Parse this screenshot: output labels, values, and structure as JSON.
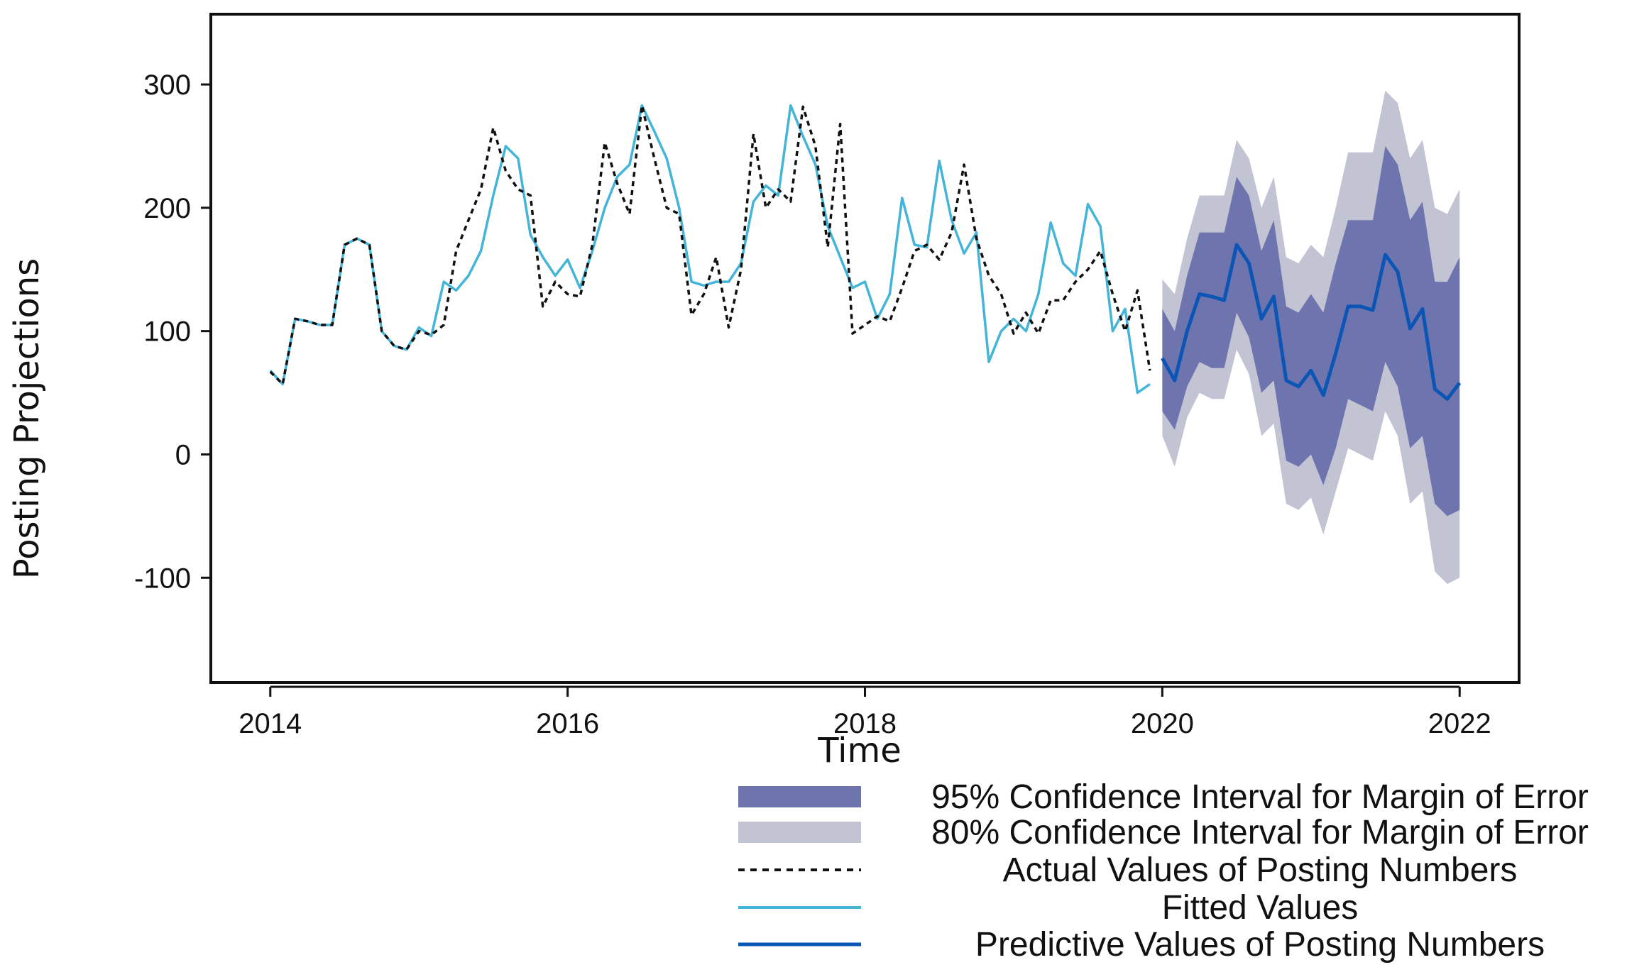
{
  "chart_data": {
    "type": "line",
    "title": "",
    "xlabel": "Time",
    "ylabel": "Posting Projections",
    "xlim": [
      2013.6,
      2022.4
    ],
    "ylim": [
      -185,
      357
    ],
    "x_ticks": [
      2014,
      2016,
      2018,
      2020,
      2022
    ],
    "x_tick_labels": [
      "2014",
      "2016",
      "2018",
      "2020",
      "2022"
    ],
    "y_ticks": [
      300,
      200,
      100,
      0,
      -100
    ],
    "y_tick_labels": [
      "300",
      "200",
      "100",
      "0",
      "-100"
    ],
    "legend_position": "bottom-right",
    "legend": [
      {
        "key": "ci95",
        "label": "95% Confidence Interval for Margin of Error"
      },
      {
        "key": "ci80",
        "label": "80% Confidence Interval for Margin of Error"
      },
      {
        "key": "actual",
        "label": "Actual Values of Posting Numbers"
      },
      {
        "key": "fitted",
        "label": "Fitted Values"
      },
      {
        "key": "predicted",
        "label": "Predictive Values of Posting Numbers"
      }
    ],
    "colors": {
      "ci95": "#6e74ae",
      "ci80": "#c2c3d3",
      "actual": "#111111",
      "fitted": "#44b4d8",
      "predicted": "#0b55b5",
      "axis": "#111111"
    },
    "series": [
      {
        "name": "Actual Values of Posting Numbers",
        "key": "actual",
        "x_start": 2014.0,
        "x_step": 0.08333,
        "values": [
          67,
          57,
          110,
          108,
          105,
          105,
          170,
          175,
          170,
          100,
          88,
          85,
          100,
          97,
          105,
          165,
          190,
          215,
          265,
          230,
          215,
          210,
          120,
          140,
          130,
          128,
          170,
          253,
          220,
          195,
          283,
          240,
          200,
          195,
          113,
          130,
          160,
          103,
          150,
          260,
          200,
          215,
          205,
          282,
          250,
          168,
          268,
          98,
          105,
          112,
          108,
          135,
          165,
          170,
          158,
          180,
          235,
          175,
          145,
          130,
          98,
          115,
          98,
          125,
          125,
          140,
          150,
          165,
          130,
          100,
          133,
          68
        ]
      },
      {
        "name": "Fitted Values",
        "key": "fitted",
        "x_start": 2014.0,
        "x_step": 0.08333,
        "values": [
          68,
          57,
          110,
          108,
          105,
          105,
          170,
          175,
          170,
          100,
          88,
          85,
          103,
          96,
          140,
          133,
          145,
          165,
          210,
          250,
          240,
          178,
          160,
          145,
          158,
          135,
          165,
          200,
          225,
          235,
          283,
          262,
          240,
          200,
          140,
          137,
          140,
          140,
          155,
          205,
          218,
          210,
          283,
          258,
          235,
          185,
          160,
          135,
          140,
          110,
          130,
          208,
          170,
          168,
          238,
          190,
          163,
          180,
          75,
          100,
          110,
          100,
          130,
          188,
          155,
          145,
          203,
          185,
          100,
          118,
          50,
          57
        ]
      },
      {
        "name": "Predictive Values of Posting Numbers",
        "key": "predicted",
        "x_start": 2020.0,
        "x_step": 0.08333,
        "values": [
          78,
          60,
          100,
          130,
          128,
          125,
          170,
          155,
          110,
          128,
          60,
          55,
          68,
          48,
          82,
          120,
          120,
          117,
          162,
          148,
          102,
          118,
          53,
          45,
          58
        ]
      },
      {
        "name": "95% Confidence Interval for Margin of Error",
        "key": "ci95",
        "x_start": 2020.0,
        "x_step": 0.08333,
        "lower": [
          35,
          20,
          55,
          75,
          70,
          70,
          115,
          95,
          50,
          60,
          -5,
          -10,
          0,
          -25,
          5,
          45,
          40,
          35,
          75,
          55,
          5,
          15,
          -40,
          -50,
          -45
        ],
        "upper": [
          118,
          100,
          145,
          180,
          180,
          180,
          225,
          210,
          165,
          190,
          120,
          115,
          130,
          115,
          155,
          190,
          190,
          190,
          250,
          235,
          190,
          205,
          140,
          140,
          160
        ]
      },
      {
        "name": "80% Confidence Interval for Margin of Error",
        "key": "ci80",
        "x_start": 2020.0,
        "x_step": 0.08333,
        "lower": [
          15,
          -10,
          30,
          50,
          45,
          45,
          85,
          65,
          15,
          25,
          -40,
          -45,
          -35,
          -65,
          -30,
          5,
          0,
          -5,
          35,
          15,
          -40,
          -30,
          -95,
          -105,
          -100
        ],
        "upper": [
          142,
          130,
          175,
          210,
          210,
          210,
          255,
          240,
          200,
          225,
          160,
          155,
          170,
          160,
          200,
          245,
          245,
          245,
          295,
          285,
          240,
          255,
          200,
          195,
          215
        ]
      }
    ]
  }
}
